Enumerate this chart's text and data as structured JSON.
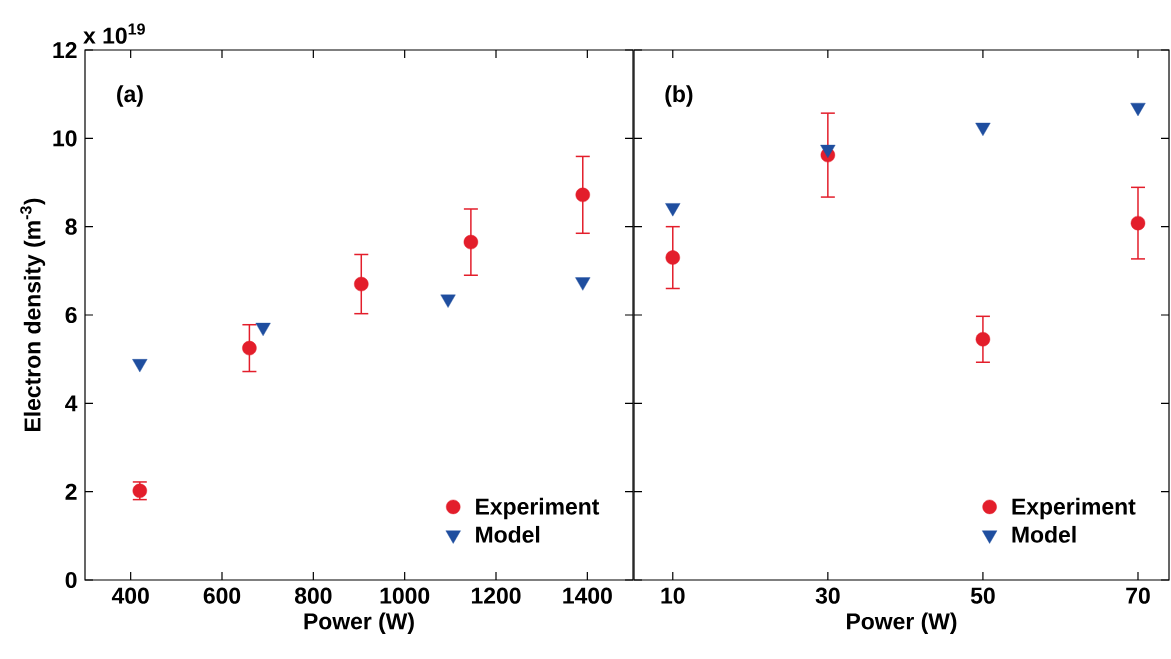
{
  "chart_data": [
    {
      "type": "scatter",
      "xlabel": "Power (W)",
      "ylabel": "Electron density (m$^{-3}$)",
      "xlim": [
        300,
        1500
      ],
      "xticks": [
        400,
        600,
        800,
        1000,
        1200,
        1400
      ],
      "ylim": [
        0,
        12
      ],
      "yticks": [
        0,
        2,
        4,
        6,
        8,
        10,
        12
      ],
      "legend": "bottom right",
      "annotations": [
        "(a)",
        "x 10$^{19}$"
      ],
      "series": [
        {
          "name": "Experiment",
          "color": "#e31e2b",
          "marker": "circle",
          "x": [
            420,
            660,
            905,
            1145,
            1390
          ],
          "values": [
            2.02,
            5.25,
            6.7,
            7.65,
            8.72
          ],
          "errors": [
            0.2,
            0.53,
            0.67,
            0.75,
            0.87
          ]
        },
        {
          "name": "Model",
          "color": "#1f4e9f",
          "marker": "triangle",
          "x": [
            420,
            690,
            1095,
            1390
          ],
          "values": [
            4.9,
            5.72,
            6.36,
            6.75
          ]
        }
      ]
    },
    {
      "type": "scatter",
      "xlabel": "Power (W)",
      "xlim": [
        5,
        74
      ],
      "xticks": [
        10,
        30,
        50,
        70
      ],
      "ylim": [
        0,
        12
      ],
      "yticks": [
        0,
        2,
        4,
        6,
        8,
        10,
        12
      ],
      "tick_labels": "x",
      "legend": "bottom right",
      "annotations": [
        "(b)"
      ],
      "series": [
        {
          "name": "Experiment",
          "color": "#e31e2b",
          "marker": "circle",
          "x": [
            10,
            30,
            50,
            70
          ],
          "values": [
            7.3,
            9.62,
            5.45,
            8.08
          ],
          "errors": [
            0.7,
            0.95,
            0.52,
            0.81
          ]
        },
        {
          "name": "Model",
          "color": "#1f4e9f",
          "marker": "triangle",
          "x": [
            10,
            30,
            50,
            70
          ],
          "values": [
            8.43,
            9.75,
            10.25,
            10.7
          ]
        }
      ]
    }
  ]
}
